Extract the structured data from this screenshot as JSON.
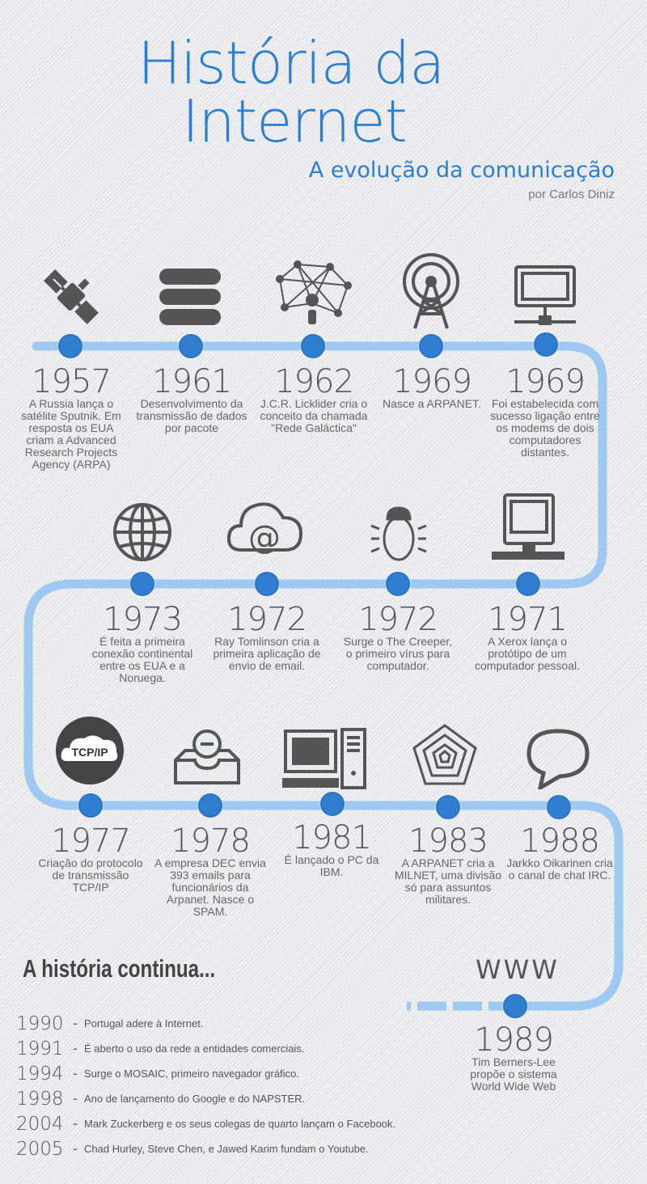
{
  "header": {
    "title_line1": "História da",
    "title_line2": "Internet",
    "subtitle": "A evolução da comunicação",
    "author": "por Carlos Diniz"
  },
  "colors": {
    "accent": "#2a7fd4",
    "track": "#9cc8f2",
    "dot": "#2f7ed1"
  },
  "events": [
    {
      "year": "1957",
      "desc": "A Russia lança o satélite Sputnik. Em resposta os EUA criam a Advanced Research Projects Agency (ARPA)",
      "icon": "satellite-icon"
    },
    {
      "year": "1961",
      "desc": "Desenvolvimento da transmissão de dados por pacote",
      "icon": "database-icon"
    },
    {
      "year": "1962",
      "desc": "J.C.R. Licklider cria o conceito da chamada \"Rede Galáctica\"",
      "icon": "network-icon"
    },
    {
      "year": "1969",
      "desc": "Nasce a ARPANET.",
      "icon": "antenna-icon"
    },
    {
      "year": "1969",
      "desc": "Foi estabelecida com sucesso ligação entre os modems de dois computadores distantes.",
      "icon": "monitor-network-icon"
    },
    {
      "year": "1971",
      "desc": "A Xerox lança o protótipo de um computador pessoal.",
      "icon": "computer-icon"
    },
    {
      "year": "1972",
      "desc": "Surge o The Creeper, o primeiro vírus para computador.",
      "icon": "bug-icon"
    },
    {
      "year": "1972",
      "desc": "Ray Tomlinson cria a primeira aplicação de envio de email.",
      "icon": "cloud-email-icon"
    },
    {
      "year": "1973",
      "desc": "É feita a primeira conexão continental entre os EUA e a Noruega.",
      "icon": "globe-icon"
    },
    {
      "year": "1977",
      "desc": "Criação do protocolo de transmissão TCP/IP",
      "icon": "tcpip-icon",
      "badge": "TCP/IP"
    },
    {
      "year": "1978",
      "desc": "A empresa DEC envia 393 emails para funcionários da Arpanet. Nasce o SPAM.",
      "icon": "inbox-icon"
    },
    {
      "year": "1981",
      "desc": "É lançado o PC da IBM.",
      "icon": "desktop-pc-icon"
    },
    {
      "year": "1983",
      "desc": "A ARPANET cria a MILNET, uma divisão só para assuntos militares.",
      "icon": "pentagon-icon"
    },
    {
      "year": "1988",
      "desc": "Jarkko Oikarinen cria o canal de chat IRC.",
      "icon": "chat-bubble-icon"
    },
    {
      "year": "1989",
      "desc": "Tim Berners-Lee propõe o sistema World Wide Web",
      "icon": "www-icon",
      "label": "WWW"
    }
  ],
  "continues": {
    "title": "A história continua...",
    "items": [
      {
        "year": "1990",
        "dash": "-",
        "text": "Portugal adere à Internet."
      },
      {
        "year": "1991",
        "dash": "-",
        "text": "É aberto o uso da rede a entidades comerciais."
      },
      {
        "year": "1994",
        "dash": "-",
        "text": "Surge o MOSAIC, primeiro navegador gráfico."
      },
      {
        "year": "1998",
        "dash": "-",
        "text": "Ano de lançamento do Google e do NAPSTER."
      },
      {
        "year": "2004",
        "dash": "-",
        "text": "Mark Zuckerberg e os seus colegas de quarto lançam o Facebook."
      },
      {
        "year": "2005",
        "dash": "-",
        "text": "Chad Hurley, Steve Chen, e Jawed Karim fundam o Youtube."
      }
    ]
  }
}
